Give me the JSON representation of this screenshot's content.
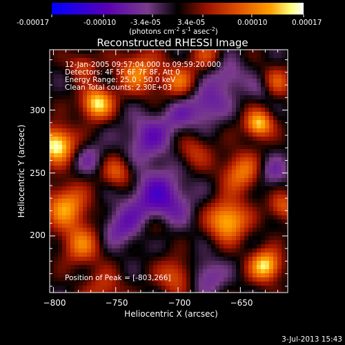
{
  "colorbar": {
    "tick_labels": [
      "-0.00017",
      "-0.00010",
      "-3.4e-05",
      "3.4e-05",
      "0.00010",
      "0.00017"
    ],
    "tick_values": [
      -0.00017,
      -0.0001,
      -3.4e-05,
      3.4e-05,
      0.0001,
      0.00017
    ],
    "range": [
      -0.00017,
      0.00017
    ],
    "units_label": "(photons cm",
    "units_exp1": "-2",
    "units_mid": " s",
    "units_exp2": "-1",
    "units_tail": " asec",
    "units_exp3": "-2",
    "units_close": ")",
    "colors": [
      "#0000ff",
      "#5a00b4",
      "#7a3c8a",
      "#000000",
      "#a01400",
      "#e05000",
      "#ffa000",
      "#ffff80",
      "#ffffff"
    ]
  },
  "chart_data": {
    "type": "heatmap",
    "title": "Reconstructed RHESSI Image",
    "xlabel": "Heliocentric X (arcsec)",
    "ylabel": "Heliocentric Y (arcsec)",
    "xlim": [
      -803,
      -612
    ],
    "ylim": [
      155,
      348
    ],
    "x_ticks": [
      -800,
      -750,
      -700,
      -650
    ],
    "x_tick_labels": [
      "−800",
      "−750",
      "−700",
      "−650"
    ],
    "y_ticks": [
      200,
      250,
      300
    ],
    "y_tick_labels": [
      "200",
      "250",
      "300"
    ],
    "info_lines": [
      "12-Jan-2005 09:57:04.000 to 09:59:20.000",
      "Detectors: 4F 5F 6F 7F 8F, Att 0",
      "Energy Range: 25.0 - 50.0 keV",
      "Clean    Total counts: 2.30E+03"
    ],
    "peak_label": "Position of Peak = [-803,266]",
    "peak_position": [
      -803,
      266
    ],
    "colormap": "rhessi-blue-purple-red-yellow-white"
  },
  "footer": {
    "date": "3-Jul-2013 15:43"
  }
}
